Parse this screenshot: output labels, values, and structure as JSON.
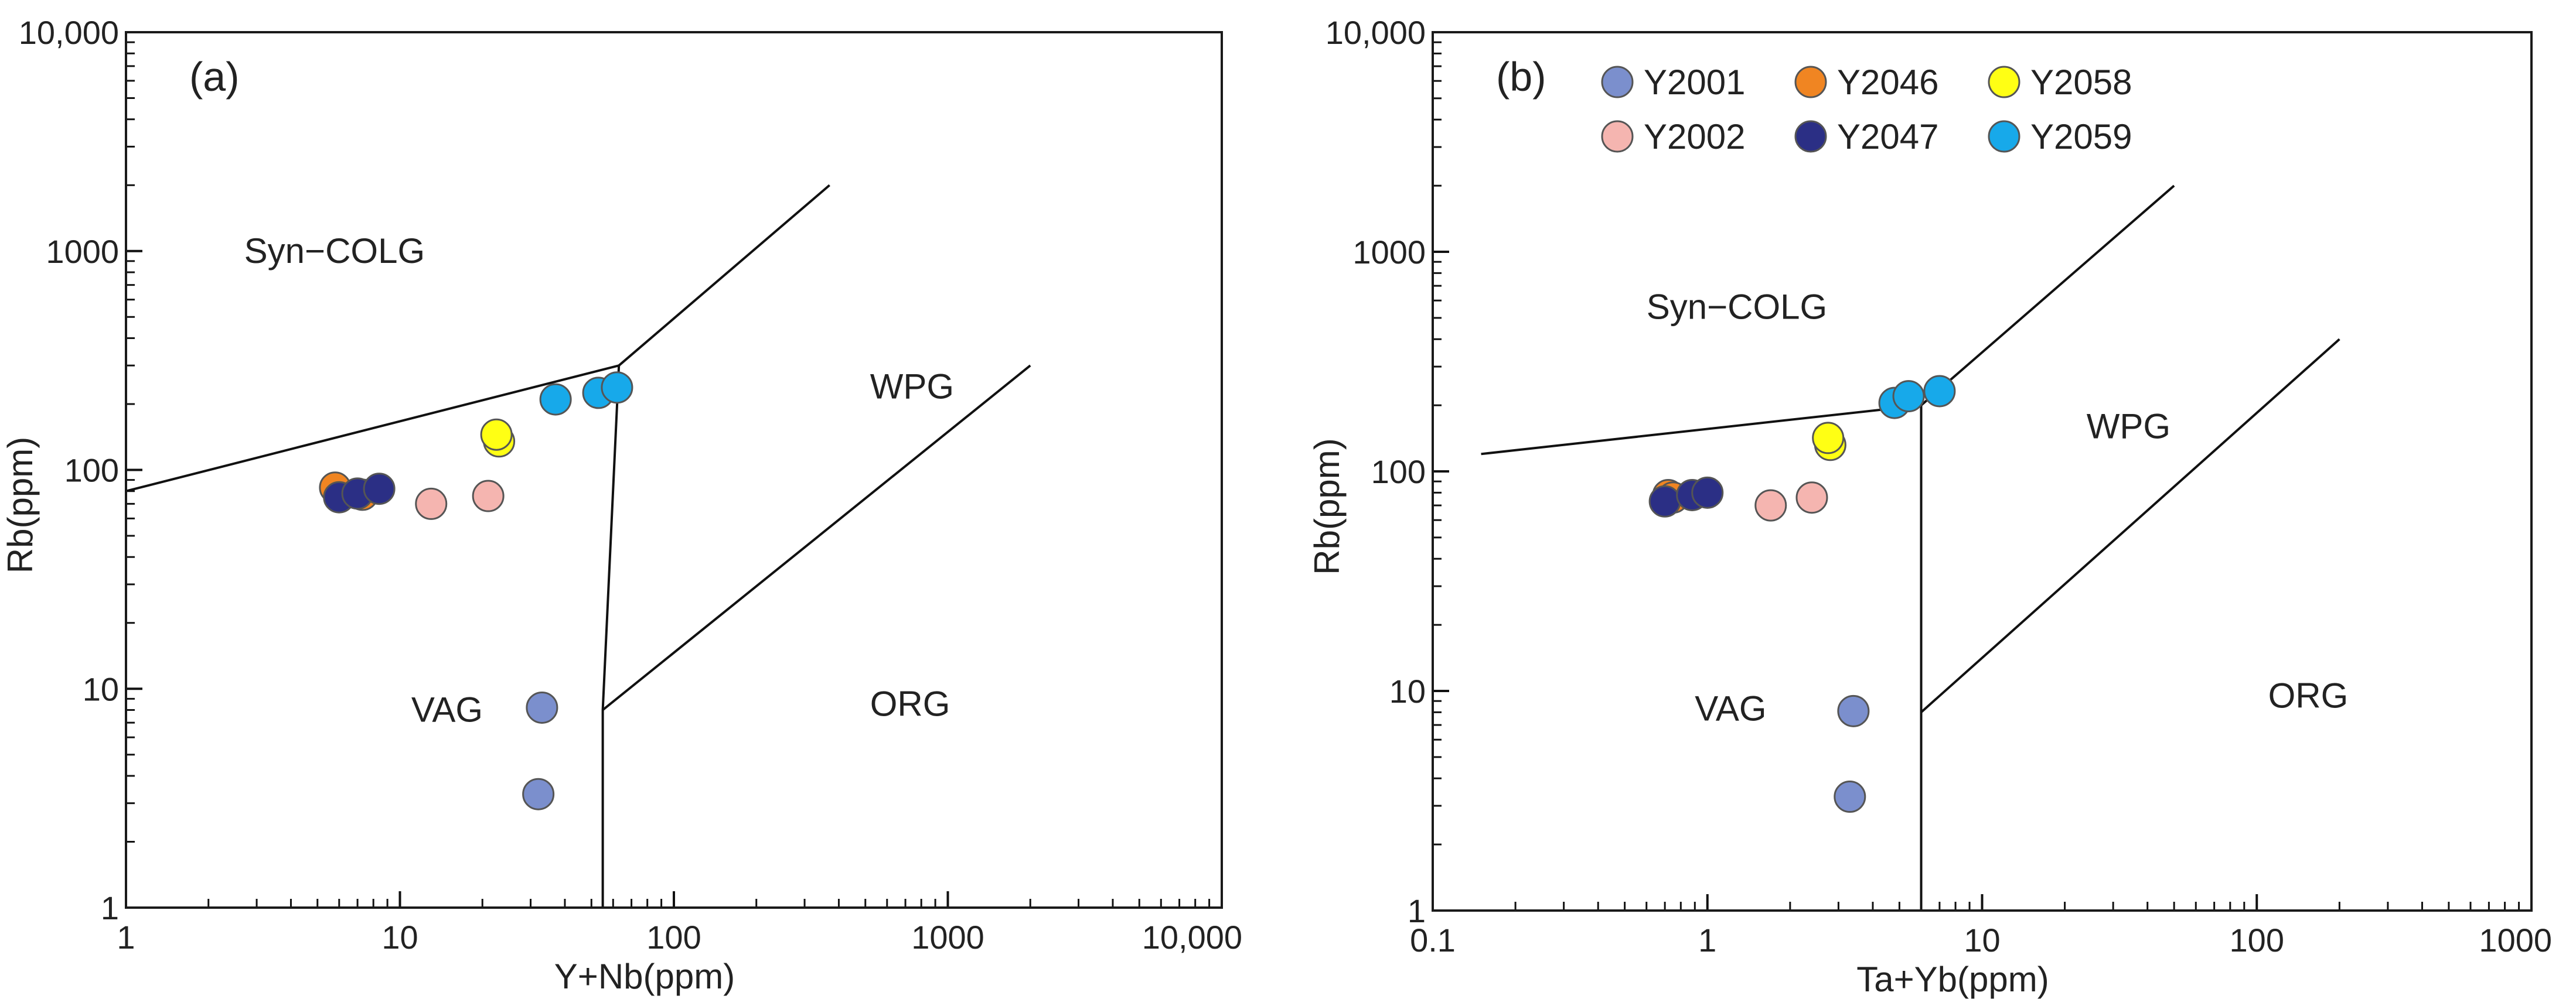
{
  "chart_data": [
    {
      "type": "scatter",
      "panel_label": "(a)",
      "xscale": "log",
      "yscale": "log",
      "xlim": [
        1,
        10000
      ],
      "ylim": [
        1,
        10000
      ],
      "xlabel": "Y+Nb(ppm)",
      "ylabel": "Rb(ppm)",
      "x_ticks": [
        {
          "v": 1,
          "label": "1"
        },
        {
          "v": 10,
          "label": "10"
        },
        {
          "v": 100,
          "label": "100"
        },
        {
          "v": 1000,
          "label": "1000"
        },
        {
          "v": 10000,
          "label": "10,000"
        }
      ],
      "y_ticks": [
        {
          "v": 1,
          "label": "1"
        },
        {
          "v": 10,
          "label": "10"
        },
        {
          "v": 100,
          "label": "100"
        },
        {
          "v": 1000,
          "label": "1000"
        },
        {
          "v": 10000,
          "label": "10,000"
        }
      ],
      "regions": [
        {
          "label": "Syn−COLG",
          "x": 2.7,
          "y": 1000
        },
        {
          "label": "WPG",
          "x": 520,
          "y": 240
        },
        {
          "label": "VAG",
          "x": 11,
          "y": 8
        },
        {
          "label": "ORG",
          "x": 520,
          "y": 8.5
        }
      ],
      "boundaries": [
        [
          [
            1,
            80
          ],
          [
            63,
            300
          ],
          [
            55,
            8
          ],
          [
            55,
            1
          ]
        ],
        [
          [
            63,
            300
          ],
          [
            370,
            2000
          ]
        ],
        [
          [
            55,
            8
          ],
          [
            2000,
            300
          ]
        ]
      ],
      "series": [
        {
          "name": "Y2001",
          "color": "#7b8fcd",
          "points": [
            [
              33,
              8.2
            ],
            [
              32,
              3.3
            ]
          ]
        },
        {
          "name": "Y2002",
          "color": "#f5b5b0",
          "points": [
            [
              13,
              70
            ],
            [
              21,
              76
            ]
          ]
        },
        {
          "name": "Y2046",
          "color": "#f08522",
          "points": [
            [
              5.8,
              83
            ],
            [
              7.3,
              77
            ]
          ]
        },
        {
          "name": "Y2047",
          "color": "#2b2f85",
          "points": [
            [
              6,
              75
            ],
            [
              7,
              78
            ],
            [
              8.4,
              82
            ]
          ]
        },
        {
          "name": "Y2058",
          "color": "#ffff14",
          "points": [
            [
              23,
              135
            ],
            [
              22.5,
              145
            ]
          ]
        },
        {
          "name": "Y2059",
          "color": "#17a9ea",
          "points": [
            [
              37,
              210
            ],
            [
              53,
              225
            ],
            [
              62,
              238
            ]
          ]
        }
      ]
    },
    {
      "type": "scatter",
      "panel_label": "(b)",
      "xscale": "log",
      "yscale": "log",
      "xlim": [
        0.1,
        1000
      ],
      "ylim": [
        1,
        10000
      ],
      "xlabel": "Ta+Yb(ppm)",
      "ylabel": "Rb(ppm)",
      "x_ticks": [
        {
          "v": 0.1,
          "label": "0.1"
        },
        {
          "v": 1,
          "label": "1"
        },
        {
          "v": 10,
          "label": "10"
        },
        {
          "v": 100,
          "label": "100"
        },
        {
          "v": 1000,
          "label": "1000"
        }
      ],
      "y_ticks": [
        {
          "v": 1,
          "label": "1"
        },
        {
          "v": 10,
          "label": "10"
        },
        {
          "v": 100,
          "label": "100"
        },
        {
          "v": 1000,
          "label": "1000"
        },
        {
          "v": 10000,
          "label": "10,000"
        }
      ],
      "regions": [
        {
          "label": "Syn−COLG",
          "x": 0.6,
          "y": 560
        },
        {
          "label": "WPG",
          "x": 24,
          "y": 160
        },
        {
          "label": "VAG",
          "x": 0.9,
          "y": 8.3
        },
        {
          "label": "ORG",
          "x": 110,
          "y": 9.5
        }
      ],
      "boundaries": [
        [
          [
            0.15,
            120
          ],
          [
            6,
            200
          ],
          [
            6,
            8
          ],
          [
            6,
            1
          ]
        ],
        [
          [
            6,
            200
          ],
          [
            50,
            2000
          ]
        ],
        [
          [
            6,
            8
          ],
          [
            200,
            400
          ]
        ]
      ],
      "legend": [
        {
          "name": "Y2001",
          "color": "#7b8fcd"
        },
        {
          "name": "Y2046",
          "color": "#f08522"
        },
        {
          "name": "Y2058",
          "color": "#ffff14"
        },
        {
          "name": "Y2002",
          "color": "#f5b5b0"
        },
        {
          "name": "Y2047",
          "color": "#2b2f85"
        },
        {
          "name": "Y2059",
          "color": "#17a9ea"
        }
      ],
      "series": [
        {
          "name": "Y2001",
          "color": "#7b8fcd",
          "points": [
            [
              3.4,
              8.1
            ],
            [
              3.3,
              3.3
            ]
          ]
        },
        {
          "name": "Y2002",
          "color": "#f5b5b0",
          "points": [
            [
              1.7,
              70
            ],
            [
              2.4,
              76
            ]
          ]
        },
        {
          "name": "Y2046",
          "color": "#f08522",
          "points": [
            [
              0.72,
              78
            ],
            [
              0.75,
              76
            ]
          ]
        },
        {
          "name": "Y2047",
          "color": "#2b2f85",
          "points": [
            [
              0.7,
              73
            ],
            [
              0.88,
              78
            ],
            [
              1.0,
              80
            ]
          ]
        },
        {
          "name": "Y2058",
          "color": "#ffff14",
          "points": [
            [
              2.8,
              132
            ],
            [
              2.75,
              142
            ]
          ]
        },
        {
          "name": "Y2059",
          "color": "#17a9ea",
          "points": [
            [
              4.8,
              205
            ],
            [
              5.4,
              220
            ],
            [
              7.0,
              232
            ]
          ]
        }
      ]
    }
  ]
}
